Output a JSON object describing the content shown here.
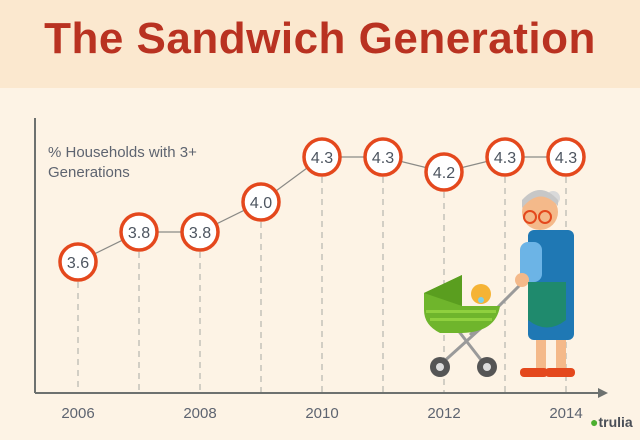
{
  "title": "The Sandwich Generation",
  "brand": "trulia",
  "chart_data": {
    "type": "line",
    "title": "The Sandwich Generation",
    "ylabel": "% Households with 3+ Generations",
    "x": [
      2006,
      2007,
      2008,
      2009,
      2010,
      2011,
      2012,
      2013,
      2014
    ],
    "values": [
      3.6,
      3.8,
      3.8,
      4.0,
      4.3,
      4.3,
      4.2,
      4.3,
      4.3
    ],
    "data_labels": [
      "3.6",
      "3.8",
      "3.8",
      "4.0",
      "4.3",
      "4.3",
      "4.2",
      "4.3",
      "4.3"
    ],
    "x_tick_labels": [
      "2006",
      "2008",
      "2010",
      "2012",
      "2014"
    ],
    "grid": false,
    "colors": {
      "marker": "#e4481d",
      "line": "#8a8a86",
      "axis": "#6d716f",
      "title": "#b93221"
    }
  }
}
